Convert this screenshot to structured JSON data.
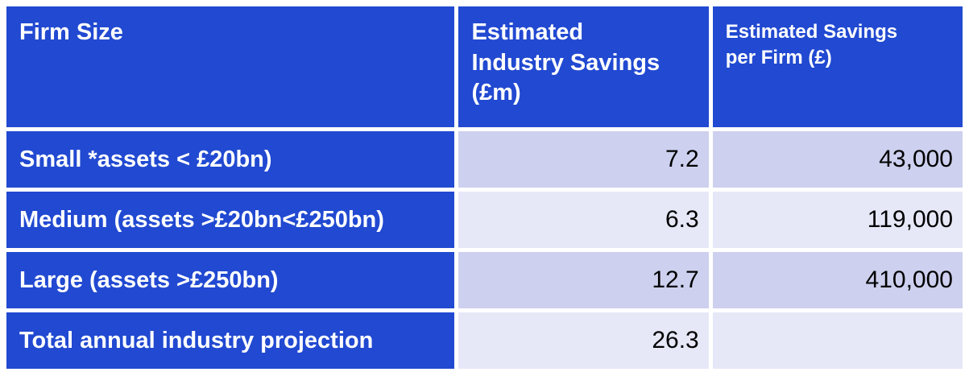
{
  "table": {
    "columns": [
      {
        "label": "Firm Size"
      },
      {
        "label": "Estimated\nIndustry Savings\n(£m)"
      },
      {
        "label": "Estimated Savings\nper Firm (£)"
      }
    ],
    "rows": [
      {
        "label": "Small *assets < £20bn)",
        "industry_savings_m": "7.2",
        "savings_per_firm": "43,000"
      },
      {
        "label": "Medium (assets >£20bn<£250bn)",
        "industry_savings_m": "6.3",
        "savings_per_firm": "119,000"
      },
      {
        "label": "Large (assets >£250bn)",
        "industry_savings_m": "12.7",
        "savings_per_firm": "410,000"
      },
      {
        "label": "Total annual industry projection",
        "industry_savings_m": "26.3",
        "savings_per_firm": ""
      }
    ],
    "colors": {
      "header_blue": "#2149d1",
      "band_dark": "#cdd0ee",
      "band_light": "#e6e8f8",
      "text_on_blue": "#ffffff",
      "text_on_light": "#000000",
      "gap_white": "#ffffff"
    }
  }
}
